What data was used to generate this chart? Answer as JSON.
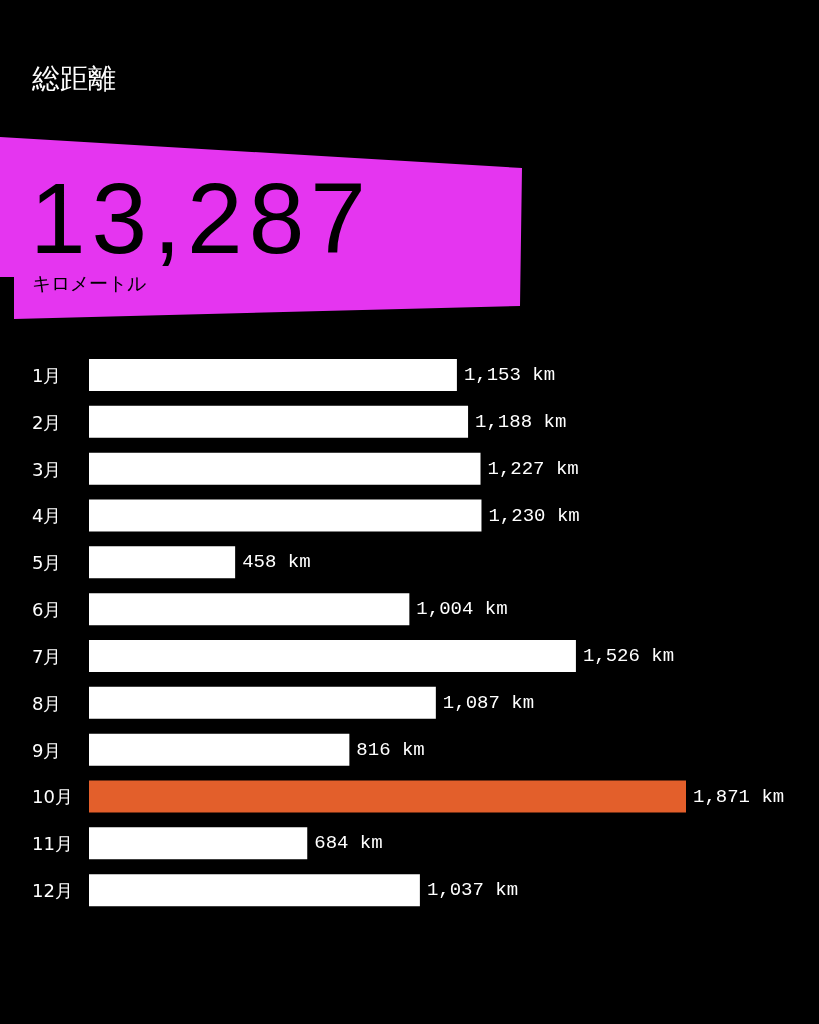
{
  "chart_data": {
    "type": "bar",
    "orientation": "horizontal",
    "title": "総距離",
    "annotations": [
      "13,287",
      "キロメートル"
    ],
    "categories": [
      "1月",
      "2月",
      "3月",
      "4月",
      "5月",
      "6月",
      "7月",
      "8月",
      "9月",
      "10月",
      "11月",
      "12月"
    ],
    "values": [
      1153,
      1188,
      1227,
      1230,
      458,
      1004,
      1526,
      1087,
      816,
      1871,
      684,
      1037
    ],
    "colors": [
      "#ffffff",
      "#ffffff",
      "#ffffff",
      "#ffffff",
      "#ffffff",
      "#ffffff",
      "#ffffff",
      "#ffffff",
      "#ffffff",
      "#e35f2b",
      "#ffffff",
      "#ffffff"
    ],
    "value_labels": [
      "1,153 km",
      "1,188 km",
      "1,227 km",
      "1,230 km",
      "458 km",
      "1,004 km",
      "1,526 km",
      "1,087 km",
      "816 km",
      "1,871 km",
      "684 km",
      "1,037 km"
    ],
    "tick_labels": "y"
  }
}
